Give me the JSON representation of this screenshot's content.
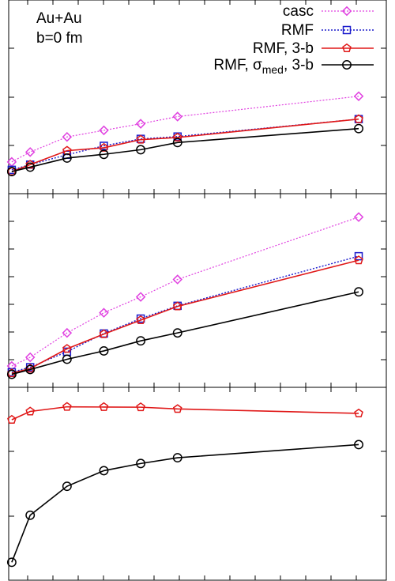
{
  "chart_data": {
    "type": "line",
    "annotation": {
      "system": "Au+Au",
      "impact": "b=0 fm"
    },
    "legend": {
      "placement": "top-right",
      "entries": [
        {
          "key": "casc",
          "parts": [
            {
              "t": "casc"
            }
          ]
        },
        {
          "key": "rmf",
          "parts": [
            {
              "t": "RMF"
            }
          ]
        },
        {
          "key": "rmf3b",
          "parts": [
            {
              "t": "RMF, 3-b"
            }
          ]
        },
        {
          "key": "rmfsig",
          "parts": [
            {
              "t": "RMF, σ"
            },
            {
              "t": "med",
              "sub": true
            },
            {
              "t": ", 3-b"
            }
          ]
        }
      ]
    },
    "styles": {
      "casc": {
        "color": "#e040e0",
        "dash": "2,2",
        "marker": "diamond",
        "width": 1.2
      },
      "rmf": {
        "color": "#1a1acc",
        "dash": "2,2",
        "marker": "square",
        "width": 1.4
      },
      "rmf3b": {
        "color": "#e01818",
        "dash": "",
        "marker": "pentagon",
        "width": 1.6
      },
      "rmfsig": {
        "color": "#000000",
        "dash": "",
        "marker": "circle",
        "width": 1.6
      }
    },
    "x": [
      0.0,
      0.6,
      1.8,
      3.0,
      4.2,
      5.4,
      11.3
    ],
    "xlim": [
      -0.1,
      12.2
    ],
    "panels": [
      {
        "ylim": [
          0,
          1.0
        ],
        "series": [
          {
            "key": "casc",
            "values": [
              0.164,
              0.215,
              0.293,
              0.327,
              0.361,
              0.398,
              0.503
            ]
          },
          {
            "key": "rmf",
            "values": [
              0.123,
              0.15,
              0.201,
              0.247,
              0.283,
              0.295,
              0.385
            ]
          },
          {
            "key": "rmf3b",
            "values": [
              0.114,
              0.15,
              0.222,
              0.237,
              0.279,
              0.29,
              0.385
            ]
          },
          {
            "key": "rmfsig",
            "values": [
              0.114,
              0.137,
              0.184,
              0.203,
              0.227,
              0.264,
              0.336
            ]
          }
        ]
      },
      {
        "ylim": [
          0,
          1.0
        ],
        "series": [
          {
            "key": "casc",
            "values": [
              0.11,
              0.155,
              0.281,
              0.385,
              0.467,
              0.557,
              0.879
            ]
          },
          {
            "key": "rmf",
            "values": [
              0.078,
              0.104,
              0.184,
              0.278,
              0.355,
              0.421,
              0.677
            ]
          },
          {
            "key": "rmf3b",
            "values": [
              0.073,
              0.097,
              0.199,
              0.275,
              0.347,
              0.418,
              0.656
            ]
          },
          {
            "key": "rmfsig",
            "values": [
              0.067,
              0.092,
              0.145,
              0.188,
              0.24,
              0.281,
              0.493
            ]
          }
        ]
      },
      {
        "ylim": [
          0,
          1.0
        ],
        "series": [
          {
            "key": "rmf3b",
            "values": [
              0.832,
              0.875,
              0.899,
              0.898,
              0.897,
              0.888,
              0.865
            ]
          },
          {
            "key": "rmfsig",
            "values": [
              0.093,
              0.337,
              0.487,
              0.568,
              0.605,
              0.635,
              0.703
            ]
          }
        ]
      }
    ]
  }
}
